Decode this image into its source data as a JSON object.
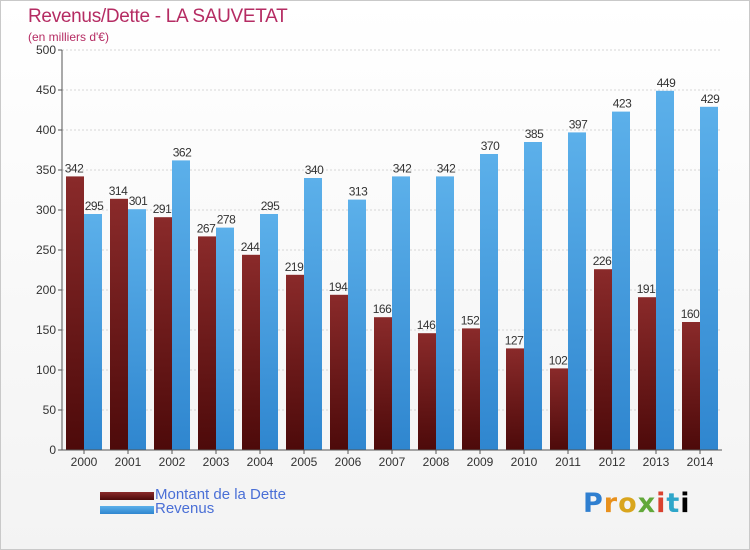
{
  "title": "Revenus/Dette - LA SAUVETAT",
  "subtitle": "(en milliers d'€)",
  "logo_text": "Proxiti",
  "colors": {
    "title": "#b52c63",
    "dette": "#7a1d1d",
    "revenus": "#4fa3e0",
    "legend_text": "#4a6fd6"
  },
  "legend": [
    {
      "label": "Montant de la Dette",
      "color": "#6b1616"
    },
    {
      "label": "Revenus",
      "color": "#4fa3e0"
    }
  ],
  "chart_data": {
    "type": "bar",
    "title": "Revenus/Dette - LA SAUVETAT",
    "subtitle": "(en milliers d'€)",
    "categories": [
      "2000",
      "2001",
      "2002",
      "2003",
      "2004",
      "2005",
      "2006",
      "2007",
      "2008",
      "2009",
      "2010",
      "2011",
      "2012",
      "2013",
      "2014"
    ],
    "series": [
      {
        "name": "Montant de la Dette",
        "values": [
          342,
          314,
          291,
          267,
          244,
          219,
          194,
          166,
          146,
          152,
          127,
          102,
          226,
          191,
          160
        ]
      },
      {
        "name": "Revenus",
        "values": [
          295,
          301,
          362,
          278,
          295,
          340,
          313,
          342,
          342,
          370,
          385,
          397,
          423,
          449,
          429
        ]
      }
    ],
    "yticks": [
      0,
      50,
      100,
      150,
      200,
      250,
      300,
      350,
      400,
      450,
      500
    ],
    "ylim": [
      0,
      500
    ],
    "grid": true,
    "legend_position": "bottom-left"
  }
}
